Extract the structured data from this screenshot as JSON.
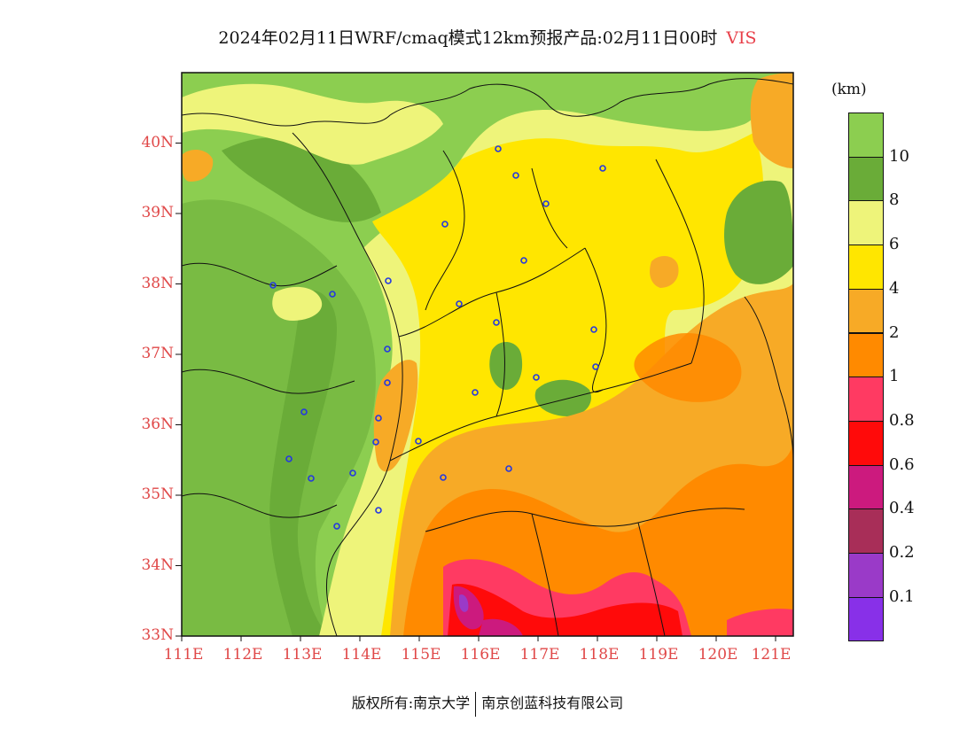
{
  "title": {
    "main": "2024年02月11日WRF/cmaq模式12km预报产品:02月11日00时",
    "variable": "VIS"
  },
  "axes": {
    "latitudes": [
      "33N",
      "34N",
      "35N",
      "36N",
      "37N",
      "38N",
      "39N",
      "40N"
    ],
    "longitudes": [
      "111E",
      "112E",
      "113E",
      "114E",
      "115E",
      "116E",
      "117E",
      "118E",
      "119E",
      "120E",
      "121E"
    ]
  },
  "legend": {
    "unit": "(km)",
    "bins": [
      {
        "color": "#8cce50"
      },
      {
        "color": "#6aac38",
        "label": "10"
      },
      {
        "color": "#eef47a",
        "label": "8"
      },
      {
        "color": "#ffe600",
        "label": "6"
      },
      {
        "color": "#f7aa26",
        "label": "4"
      },
      {
        "color": "#ff8a00",
        "label": "2"
      },
      {
        "color": "#ff3a62",
        "label": "1"
      },
      {
        "color": "#ff0a0a",
        "label": "0.8"
      },
      {
        "color": "#cc1a7e",
        "label": "0.6"
      },
      {
        "color": "#a82e58",
        "label": "0.4"
      },
      {
        "color": "#9a3ac8",
        "label": "0.2"
      },
      {
        "color": "#8830e8",
        "label": "0.1"
      }
    ]
  },
  "footer": {
    "left": "版权所有:南京大学",
    "right": "南京创蓝科技有限公司"
  }
}
